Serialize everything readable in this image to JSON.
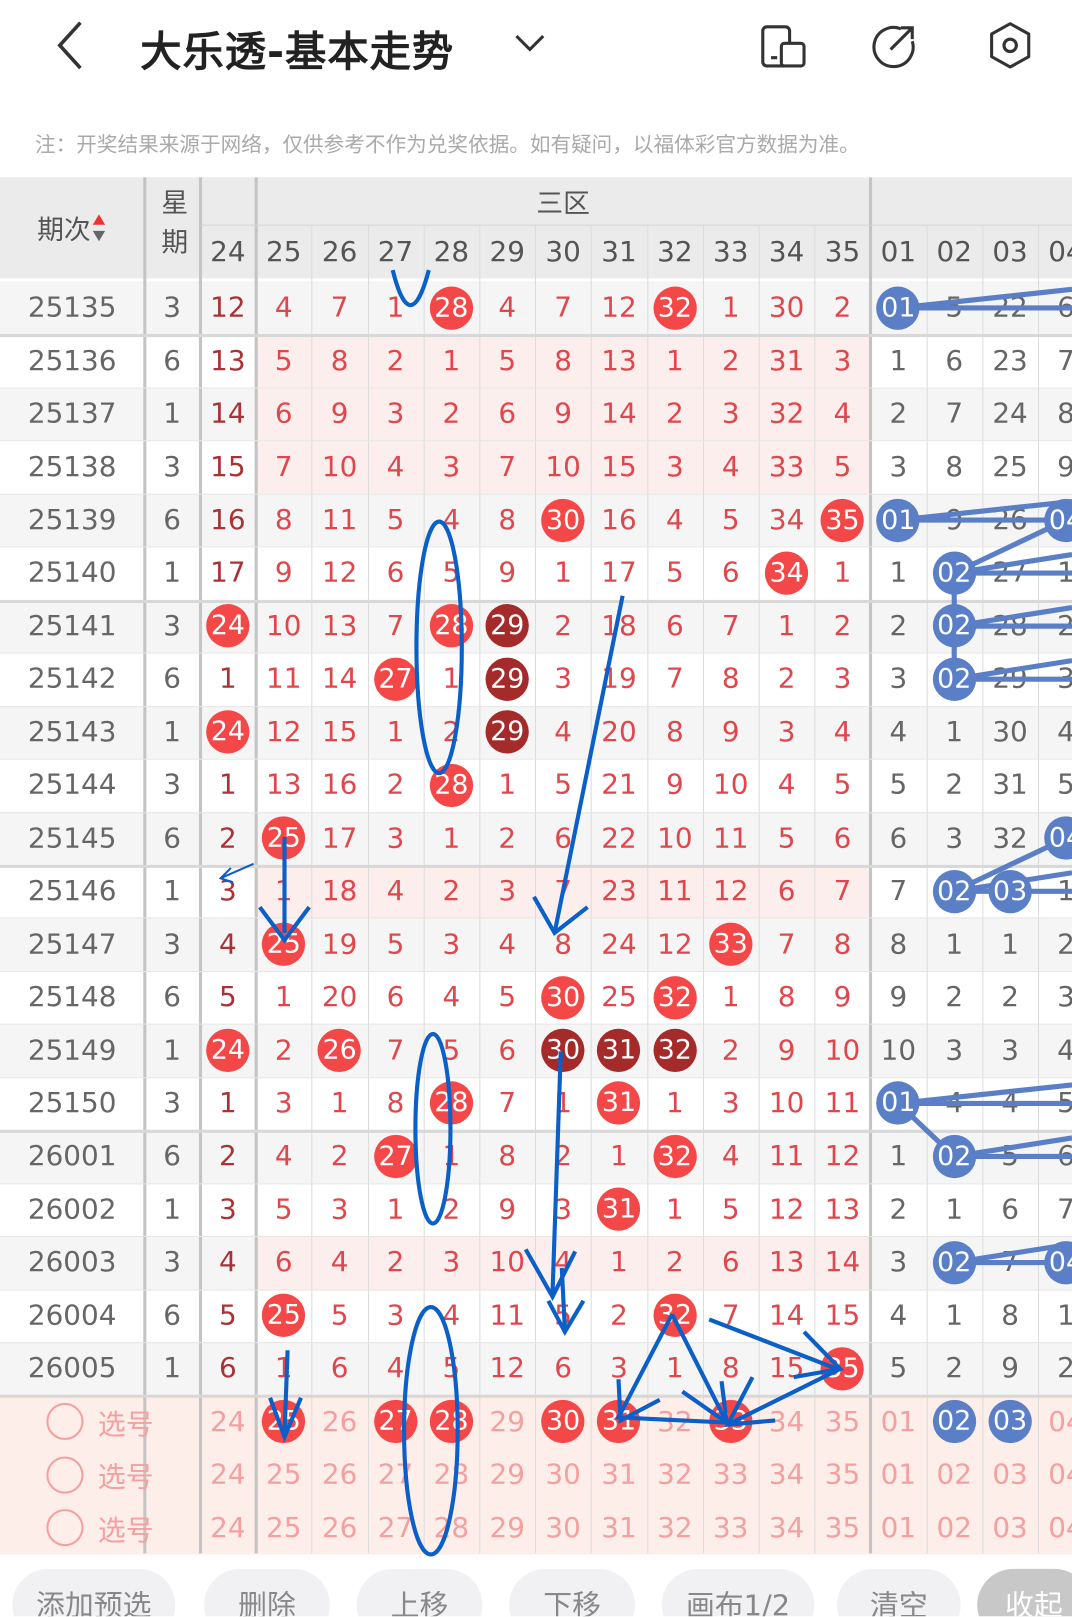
{
  "header": {
    "title": "大乐透-基本走势",
    "back_icon": "chevron-left-icon",
    "dropdown_icon": "chevron-down-icon",
    "icons": [
      "phone-layout-icon",
      "share-icon",
      "settings-icon"
    ]
  },
  "notice": "注：开奖结果来源于网络，仅供参考不作为兑奖依据。如有疑问，以福体彩官方数据为准。",
  "colors": {
    "ball_red": "#f44848",
    "ball_dark": "#a52a2a",
    "ball_blue": "#5b7fc7",
    "text_red": "#e0474c",
    "annotation_blue": "#0a5fc8"
  },
  "table": {
    "period_header": "期次",
    "weekday_header": "星期",
    "zone_header": "三区",
    "front_columns": [
      "24",
      "25",
      "26",
      "27",
      "28",
      "29",
      "30",
      "31",
      "32",
      "33",
      "34",
      "35"
    ],
    "back_columns": [
      "01",
      "02",
      "03",
      "04"
    ],
    "rows": [
      {
        "period": "25135",
        "week": "3",
        "front": [
          "12",
          "4",
          "7",
          "1",
          "28",
          "4",
          "7",
          "12",
          "32",
          "1",
          "30",
          "2"
        ],
        "back": [
          "01",
          "5",
          "22",
          "6"
        ],
        "hits": [
          "28",
          "32"
        ],
        "dark": [],
        "bhits": [
          "01"
        ],
        "shade": false
      },
      {
        "period": "25136",
        "week": "6",
        "front": [
          "13",
          "5",
          "8",
          "2",
          "1",
          "5",
          "8",
          "13",
          "1",
          "2",
          "31",
          "3"
        ],
        "back": [
          "1",
          "6",
          "23",
          "7"
        ],
        "hits": [],
        "dark": [],
        "bhits": [],
        "shade": true
      },
      {
        "period": "25137",
        "week": "1",
        "front": [
          "14",
          "6",
          "9",
          "3",
          "2",
          "6",
          "9",
          "14",
          "2",
          "3",
          "32",
          "4"
        ],
        "back": [
          "2",
          "7",
          "24",
          "8"
        ],
        "hits": [],
        "dark": [],
        "bhits": [],
        "shade": true
      },
      {
        "period": "25138",
        "week": "3",
        "front": [
          "15",
          "7",
          "10",
          "4",
          "3",
          "7",
          "10",
          "15",
          "3",
          "4",
          "33",
          "5"
        ],
        "back": [
          "3",
          "8",
          "25",
          "9"
        ],
        "hits": [],
        "dark": [],
        "bhits": [],
        "shade": true
      },
      {
        "period": "25139",
        "week": "6",
        "front": [
          "16",
          "8",
          "11",
          "5",
          "4",
          "8",
          "30",
          "16",
          "4",
          "5",
          "34",
          "35"
        ],
        "back": [
          "01",
          "9",
          "26",
          "04"
        ],
        "hits": [
          "30",
          "35"
        ],
        "dark": [],
        "bhits": [
          "01",
          "04"
        ],
        "shade": false
      },
      {
        "period": "25140",
        "week": "1",
        "front": [
          "17",
          "9",
          "12",
          "6",
          "5",
          "9",
          "1",
          "17",
          "5",
          "6",
          "34",
          "1"
        ],
        "back": [
          "1",
          "02",
          "27",
          "1"
        ],
        "hits": [
          "34"
        ],
        "dark": [],
        "bhits": [
          "02"
        ],
        "shade": false
      },
      {
        "period": "25141",
        "week": "3",
        "front": [
          "24",
          "10",
          "13",
          "7",
          "28",
          "29",
          "2",
          "18",
          "6",
          "7",
          "1",
          "2"
        ],
        "back": [
          "2",
          "02",
          "28",
          "2"
        ],
        "hits": [
          "24",
          "28"
        ],
        "dark": [
          "29"
        ],
        "bhits": [
          "02"
        ],
        "shade": false
      },
      {
        "period": "25142",
        "week": "6",
        "front": [
          "1",
          "11",
          "14",
          "27",
          "1",
          "29",
          "3",
          "19",
          "7",
          "8",
          "2",
          "3"
        ],
        "back": [
          "3",
          "02",
          "29",
          "3"
        ],
        "hits": [
          "27"
        ],
        "dark": [
          "29"
        ],
        "bhits": [
          "02"
        ],
        "shade": false
      },
      {
        "period": "25143",
        "week": "1",
        "front": [
          "24",
          "12",
          "15",
          "1",
          "2",
          "29",
          "4",
          "20",
          "8",
          "9",
          "3",
          "4"
        ],
        "back": [
          "4",
          "1",
          "30",
          "4"
        ],
        "hits": [
          "24"
        ],
        "dark": [
          "29"
        ],
        "bhits": [],
        "shade": false
      },
      {
        "period": "25144",
        "week": "3",
        "front": [
          "1",
          "13",
          "16",
          "2",
          "28",
          "1",
          "5",
          "21",
          "9",
          "10",
          "4",
          "5"
        ],
        "back": [
          "5",
          "2",
          "31",
          "5"
        ],
        "hits": [
          "28"
        ],
        "dark": [],
        "bhits": [],
        "shade": false
      },
      {
        "period": "25145",
        "week": "6",
        "front": [
          "2",
          "25",
          "17",
          "3",
          "1",
          "2",
          "6",
          "22",
          "10",
          "11",
          "5",
          "6"
        ],
        "back": [
          "6",
          "3",
          "32",
          "04"
        ],
        "hits": [
          "25"
        ],
        "dark": [],
        "bhits": [
          "04"
        ],
        "shade": false
      },
      {
        "period": "25146",
        "week": "1",
        "front": [
          "3",
          "1",
          "18",
          "4",
          "2",
          "3",
          "7",
          "23",
          "11",
          "12",
          "6",
          "7"
        ],
        "back": [
          "7",
          "02",
          "03",
          "1"
        ],
        "hits": [],
        "dark": [],
        "bhits": [
          "02",
          "03"
        ],
        "shade": true
      },
      {
        "period": "25147",
        "week": "3",
        "front": [
          "4",
          "25",
          "19",
          "5",
          "3",
          "4",
          "8",
          "24",
          "12",
          "33",
          "7",
          "8"
        ],
        "back": [
          "8",
          "1",
          "1",
          "2"
        ],
        "hits": [
          "25",
          "33"
        ],
        "dark": [],
        "bhits": [],
        "shade": false
      },
      {
        "period": "25148",
        "week": "6",
        "front": [
          "5",
          "1",
          "20",
          "6",
          "4",
          "5",
          "30",
          "25",
          "32",
          "1",
          "8",
          "9"
        ],
        "back": [
          "9",
          "2",
          "2",
          "3"
        ],
        "hits": [
          "30",
          "32"
        ],
        "dark": [],
        "bhits": [],
        "shade": false
      },
      {
        "period": "25149",
        "week": "1",
        "front": [
          "24",
          "2",
          "26",
          "7",
          "5",
          "6",
          "30",
          "31",
          "32",
          "2",
          "9",
          "10"
        ],
        "back": [
          "10",
          "3",
          "3",
          "4"
        ],
        "hits": [
          "24",
          "26"
        ],
        "dark": [
          "30",
          "31",
          "32"
        ],
        "bhits": [],
        "shade": false
      },
      {
        "period": "25150",
        "week": "3",
        "front": [
          "1",
          "3",
          "1",
          "8",
          "28",
          "7",
          "1",
          "31",
          "1",
          "3",
          "10",
          "11"
        ],
        "back": [
          "01",
          "4",
          "4",
          "5"
        ],
        "hits": [
          "28",
          "31"
        ],
        "dark": [],
        "bhits": [
          "01"
        ],
        "shade": false
      },
      {
        "period": "26001",
        "week": "6",
        "front": [
          "2",
          "4",
          "2",
          "27",
          "1",
          "8",
          "2",
          "1",
          "32",
          "4",
          "11",
          "12"
        ],
        "back": [
          "1",
          "02",
          "5",
          "6"
        ],
        "hits": [
          "27",
          "32"
        ],
        "dark": [],
        "bhits": [
          "02"
        ],
        "shade": false
      },
      {
        "period": "26002",
        "week": "1",
        "front": [
          "3",
          "5",
          "3",
          "1",
          "2",
          "9",
          "3",
          "31",
          "1",
          "5",
          "12",
          "13"
        ],
        "back": [
          "2",
          "1",
          "6",
          "7"
        ],
        "hits": [
          "31"
        ],
        "dark": [],
        "bhits": [],
        "shade": false
      },
      {
        "period": "26003",
        "week": "3",
        "front": [
          "4",
          "6",
          "4",
          "2",
          "3",
          "10",
          "4",
          "1",
          "2",
          "6",
          "13",
          "14"
        ],
        "back": [
          "3",
          "02",
          "7",
          "04"
        ],
        "hits": [],
        "dark": [],
        "bhits": [
          "02",
          "04"
        ],
        "shade": true
      },
      {
        "period": "26004",
        "week": "6",
        "front": [
          "5",
          "25",
          "5",
          "3",
          "4",
          "11",
          "5",
          "2",
          "32",
          "7",
          "14",
          "15"
        ],
        "back": [
          "4",
          "1",
          "8",
          "1"
        ],
        "hits": [
          "25",
          "32"
        ],
        "dark": [],
        "bhits": [],
        "shade": false
      },
      {
        "period": "26005",
        "week": "1",
        "front": [
          "6",
          "1",
          "6",
          "4",
          "5",
          "12",
          "6",
          "3",
          "1",
          "8",
          "15",
          "35"
        ],
        "back": [
          "5",
          "2",
          "9",
          "2"
        ],
        "hits": [
          "35"
        ],
        "dark": [],
        "bhits": [],
        "shade": false
      }
    ],
    "select_rows": [
      {
        "label": "选号",
        "selected_front": [
          "25",
          "27",
          "28",
          "30",
          "31",
          "33"
        ],
        "selected_back": [
          "02",
          "03"
        ]
      },
      {
        "label": "选号",
        "selected_front": [],
        "selected_back": []
      },
      {
        "label": "选号",
        "selected_front": [],
        "selected_back": []
      }
    ]
  },
  "toolbar": {
    "buttons": [
      "添加预选",
      "删除",
      "上移",
      "下移",
      "画布1/2",
      "清空",
      "收起"
    ]
  }
}
